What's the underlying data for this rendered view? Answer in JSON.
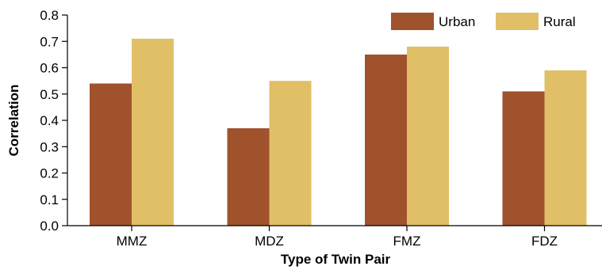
{
  "chart_data": {
    "type": "bar",
    "categories": [
      "MMZ",
      "MDZ",
      "FMZ",
      "FDZ"
    ],
    "series": [
      {
        "name": "Urban",
        "values": [
          0.54,
          0.37,
          0.65,
          0.51
        ],
        "color": "#a0522d"
      },
      {
        "name": "Rural",
        "values": [
          0.71,
          0.55,
          0.68,
          0.59
        ],
        "color": "#e0bf67"
      }
    ],
    "title": "",
    "xlabel": "Type of Twin Pair",
    "ylabel": "Correlation",
    "ylim": [
      0,
      0.8
    ],
    "yticks": [
      "0.0",
      "0.1",
      "0.2",
      "0.3",
      "0.4",
      "0.5",
      "0.6",
      "0.7",
      "0.8"
    ],
    "grid": false,
    "legend_position": "top-right"
  }
}
